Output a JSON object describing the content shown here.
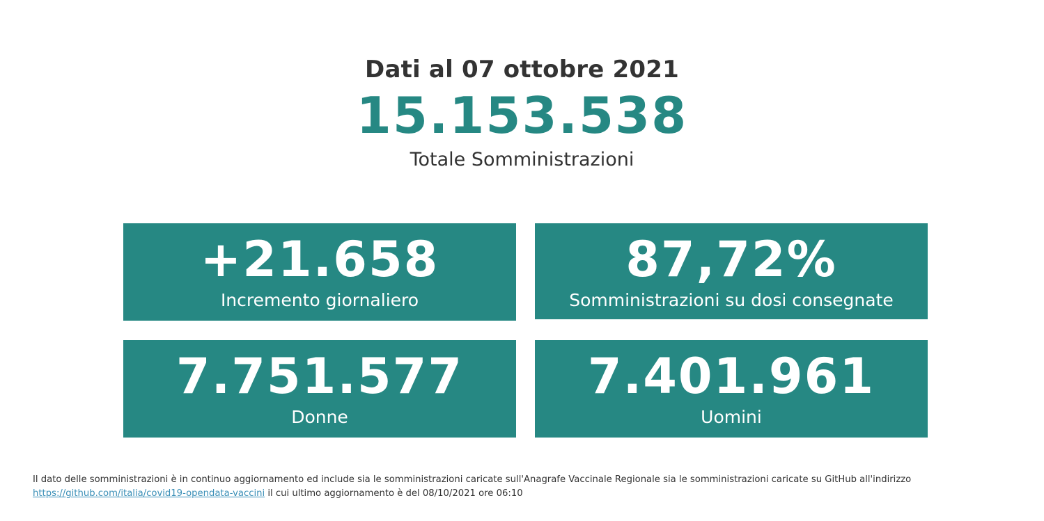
{
  "colors": {
    "accent": "#268883",
    "text": "#333333",
    "link": "#3a8fb7",
    "background": "#ffffff"
  },
  "header": {
    "date_title": "Dati al 07 ottobre 2021",
    "total_value": "15.153.538",
    "total_label": "Totale Somministrazioni"
  },
  "cards": [
    {
      "value": "+21.658",
      "label": "Incremento giornaliero"
    },
    {
      "value": "87,72%",
      "label": "Somministrazioni su dosi consegnate"
    },
    {
      "value": "7.751.577",
      "label": "Donne"
    },
    {
      "value": "7.401.961",
      "label": "Uomini"
    }
  ],
  "footer": {
    "line1": "Il dato delle somministrazioni è in continuo aggiornamento ed include sia le somministrazioni caricate sull'Anagrafe Vaccinale Regionale sia le somministrazioni caricate su GitHub all'indirizzo",
    "link_text": "https://github.com/italia/covid19-opendata-vaccini",
    "line2_suffix": "il cui ultimo aggiornamento è del 08/10/2021 ore 06:10"
  }
}
